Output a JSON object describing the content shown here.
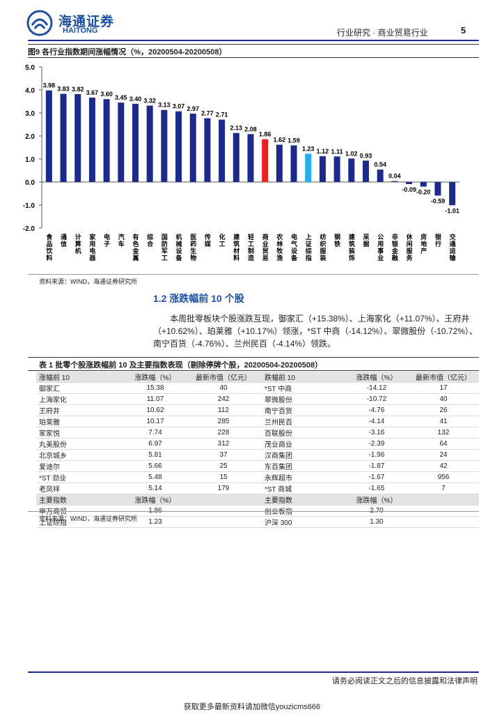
{
  "header": {
    "logo_cn": "海通证券",
    "logo_en": "HAITONG",
    "section": "行业研究 · 商业贸易行业",
    "page": "5"
  },
  "chart_data": {
    "type": "bar",
    "title": "图9  各行业指数期间涨幅情况（%，20200504-20200508）",
    "categories": [
      "食品饮料",
      "通信",
      "计算机",
      "家用电器",
      "电子",
      "汽车",
      "有色金属",
      "综合",
      "国防军工",
      "机械设备",
      "医药生物",
      "传媒",
      "化工",
      "建筑材料",
      "轻工制造",
      "商业贸易",
      "农林牧渔",
      "电气设备",
      "上证综指",
      "纺织服装",
      "钢铁",
      "建筑装饰",
      "采掘",
      "公用事业",
      "非银金融",
      "休闲服务",
      "房地产",
      "银行",
      "交通运输"
    ],
    "values": [
      3.98,
      3.83,
      3.82,
      3.67,
      3.6,
      3.45,
      3.4,
      3.32,
      3.13,
      3.07,
      2.97,
      2.77,
      2.71,
      2.13,
      2.08,
      1.86,
      1.62,
      1.59,
      1.23,
      1.12,
      1.11,
      1.02,
      0.93,
      0.54,
      0.04,
      -0.09,
      -0.2,
      -0.59,
      -1.01
    ],
    "value_labels": [
      "3.98",
      "3.83",
      "3.82",
      "3.67",
      "3.60",
      "3.45",
      "3.40",
      "3.32",
      "3.13",
      "3.07",
      "2.97",
      "2.77",
      "2.71",
      "2.13",
      "2.08",
      "1.86",
      "1.62",
      "1.59",
      "1.23",
      "1.12",
      "1.11",
      "1.02",
      "0.93",
      "0.54",
      "0.04",
      "-0.09",
      "-0.20",
      "-0.59",
      "-1.01"
    ],
    "colors": [
      "#1c2a8c",
      "#1c2a8c",
      "#1c2a8c",
      "#1c2a8c",
      "#1c2a8c",
      "#1c2a8c",
      "#1c2a8c",
      "#1c2a8c",
      "#1c2a8c",
      "#1c2a8c",
      "#1c2a8c",
      "#1c2a8c",
      "#1c2a8c",
      "#1c2a8c",
      "#1c2a8c",
      "#e8231f",
      "#1c2a8c",
      "#1c2a8c",
      "#22aef0",
      "#1c2a8c",
      "#1c2a8c",
      "#1c2a8c",
      "#1c2a8c",
      "#1c2a8c",
      "#1c2a8c",
      "#1c2a8c",
      "#1c2a8c",
      "#1c2a8c",
      "#1c2a8c"
    ],
    "ylim": [
      -2,
      5
    ],
    "yticks": [
      {
        "value": 5,
        "label": "5.0"
      },
      {
        "value": 4,
        "label": "4.0"
      },
      {
        "value": 3,
        "label": "3.0"
      },
      {
        "value": 2,
        "label": "2.0"
      },
      {
        "value": 1,
        "label": "1.0"
      },
      {
        "value": 0,
        "label": "0.0"
      },
      {
        "value": -1,
        "label": "-1.0"
      },
      {
        "value": -2,
        "label": "-2.0"
      }
    ],
    "source": "资料来源：WIND，海通证券研究所"
  },
  "section": {
    "heading": "1.2 涨跌幅前 10 个股",
    "paragraph": "本周批零板块个股涨跌互现，御家汇（+15.38%）、上海家化（+11.07%）、王府井（+10.62%）、珀莱雅（+10.17%）领涨，*ST 中商（-14.12%）、翠微股份（-10.72%）、南宁百货（-4.76%）、兰州民百（-4.14%）领跌。"
  },
  "table": {
    "title": "表 1 批零个股涨跌幅前 10 及主要指数表现（剔除停牌个股，20200504-20200508）",
    "header": [
      "涨幅前 10",
      "涨跌幅（%）",
      "最新市值（亿元）",
      "跌幅前 10",
      "涨跌幅（%）",
      "最新市值（亿元）"
    ],
    "rows": [
      [
        "御家汇",
        "15.38",
        "40",
        "*ST 中商",
        "-14.12",
        "17"
      ],
      [
        "上海家化",
        "11.07",
        "242",
        "翠微股份",
        "-10.72",
        "40"
      ],
      [
        "王府井",
        "10.62",
        "112",
        "南宁百货",
        "-4.76",
        "26"
      ],
      [
        "珀莱雅",
        "10.17",
        "285",
        "兰州民百",
        "-4.14",
        "41"
      ],
      [
        "家家悦",
        "7.74",
        "228",
        "百联股份",
        "-3.16",
        "132"
      ],
      [
        "丸美股份",
        "6.97",
        "312",
        "茂业商业",
        "-2.39",
        "64"
      ],
      [
        "北京城乡",
        "5.81",
        "37",
        "汉商集团",
        "-1.96",
        "24"
      ],
      [
        "爱迪尔",
        "5.66",
        "25",
        "东百集团",
        "-1.87",
        "42"
      ],
      [
        "*ST 劲业",
        "5.48",
        "15",
        "永辉超市",
        "-1.67",
        "956"
      ],
      [
        "老凤祥",
        "5.14",
        "179",
        "*ST 商城",
        "-1.65",
        "7"
      ]
    ],
    "index_header": [
      "主要指数",
      "涨跌幅（%）",
      "主要指数",
      "涨跌幅（%）"
    ],
    "index_rows": [
      [
        "申万商贸",
        "1.86",
        "创业板指",
        "2.70"
      ],
      [
        "上证综指",
        "1.23",
        "沪深 300",
        "1.30"
      ]
    ],
    "source": "资料来源：WIND，海通证券研究所"
  },
  "footer": {
    "notice": "请务必阅读正文之后的信息披露和法律声明",
    "watermark": "获取更多最新资料请加微信youzicms666"
  }
}
